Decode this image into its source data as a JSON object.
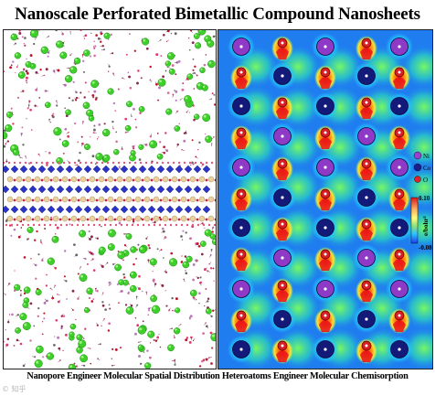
{
  "title": "Nanoscale Perforated  Bimetallic Compound Nanosheets",
  "legend": {
    "items": [
      {
        "label": "Ni",
        "color": "#9b3fd0"
      },
      {
        "label": "Co",
        "color": "#1a1f8c"
      },
      {
        "label": "O",
        "color": "#e0202a"
      }
    ]
  },
  "colorbar": {
    "max_label": "0.10",
    "min_label": "-0.08",
    "unit_label": "e/bohr³"
  },
  "caption": "Nanopore Engineer Molecular Spatial Distribution Heteroatoms Engineer Molecular Chemisorption",
  "watermark": "© 知乎"
}
